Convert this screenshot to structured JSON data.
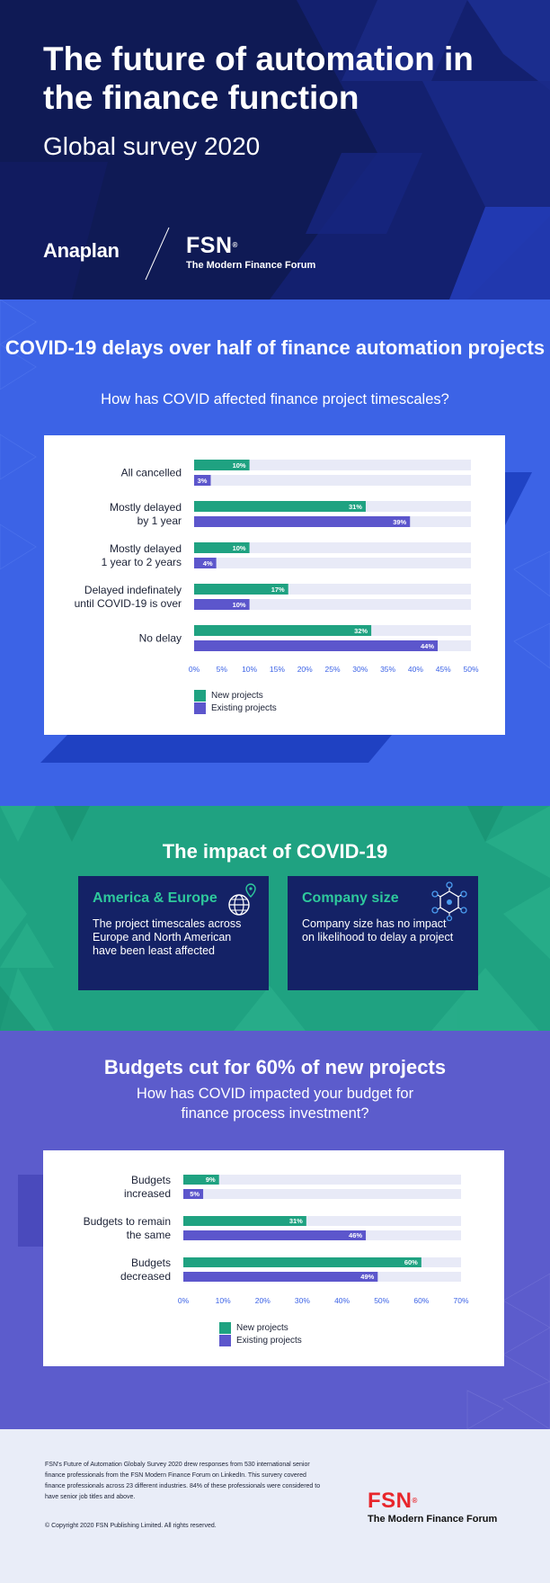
{
  "hero": {
    "title": "The future of automation in the finance function",
    "subtitle": "Global survey 2020",
    "anaplan_logo": "Anaplan",
    "fsn_logo": "FSN",
    "fsn_reg": "®",
    "fsn_tagline": "The Modern Finance Forum"
  },
  "section_covid_delays": {
    "title": "COVID-19 delays over half of finance automation projects",
    "subtitle": "How has COVID affected finance project timescales?"
  },
  "section_impact": {
    "title": "The impact of COVID-19",
    "boxes": [
      {
        "heading": "America & Europe",
        "text": "The project timescales across Europe and North American have been least affected",
        "icon": "globe-location-icon"
      },
      {
        "heading": "Company size",
        "text": "Company size has no impact on likelihood to delay a project",
        "icon": "network-nodes-icon"
      }
    ]
  },
  "section_budgets": {
    "title": "Budgets cut for 60% of new projects",
    "subtitle": "How has COVID impacted your budget for finance process investment?"
  },
  "legend": {
    "new": "New projects",
    "existing": "Existing projects"
  },
  "colors": {
    "new": "#1fa281",
    "existing": "#5c56cc",
    "track": "#e8eaf7",
    "axis": "#3c63e6"
  },
  "chart_data": [
    {
      "type": "bar",
      "orientation": "horizontal",
      "categories": [
        "All cancelled",
        "Mostly delayed by 1 year",
        "Mostly delayed 1 year to 2 years",
        "Delayed indefinately until COVID-19 is over",
        "No delay"
      ],
      "category_lines": [
        [
          "All cancelled"
        ],
        [
          "Mostly delayed",
          "by 1 year"
        ],
        [
          "Mostly delayed",
          "1 year to 2 years"
        ],
        [
          "Delayed indefinately",
          "until COVID-19 is over"
        ],
        [
          "No delay"
        ]
      ],
      "series": [
        {
          "name": "New projects",
          "values": [
            10,
            31,
            10,
            17,
            32
          ]
        },
        {
          "name": "Existing projects",
          "values": [
            3,
            39,
            4,
            10,
            44
          ]
        }
      ],
      "xlim": [
        0,
        50
      ],
      "ticks": [
        0,
        5,
        10,
        15,
        20,
        25,
        30,
        35,
        40,
        45,
        50
      ],
      "tick_suffix": "%",
      "legend_position": "bottom-left"
    },
    {
      "type": "bar",
      "orientation": "horizontal",
      "categories": [
        "Budgets increased",
        "Budgets to remain the same",
        "Budgets decreased"
      ],
      "category_lines": [
        [
          "Budgets",
          "increased"
        ],
        [
          "Budgets to remain",
          "the same"
        ],
        [
          "Budgets",
          "decreased"
        ]
      ],
      "series": [
        {
          "name": "New projects",
          "values": [
            9,
            31,
            60
          ]
        },
        {
          "name": "Existing projects",
          "values": [
            5,
            46,
            49
          ]
        }
      ],
      "xlim": [
        0,
        70
      ],
      "ticks": [
        0,
        10,
        20,
        30,
        40,
        50,
        60,
        70
      ],
      "tick_suffix": "%",
      "legend_position": "bottom-center"
    }
  ],
  "footer": {
    "note": "FSN's Future of Automation Globaly Survey 2020 drew responses from 530 international senior finance professionals from the FSN Modern Finance Forum on LinkedIn. This survery covered finance professionals across 23 different industries. 84% of these professionals were considered to have senior job titles and above.",
    "copyright": "© Copyright 2020 FSN Publishing Limited. All rights reserved.",
    "logo": "FSN",
    "logo_reg": "®",
    "tagline": "The Modern Finance Forum"
  }
}
